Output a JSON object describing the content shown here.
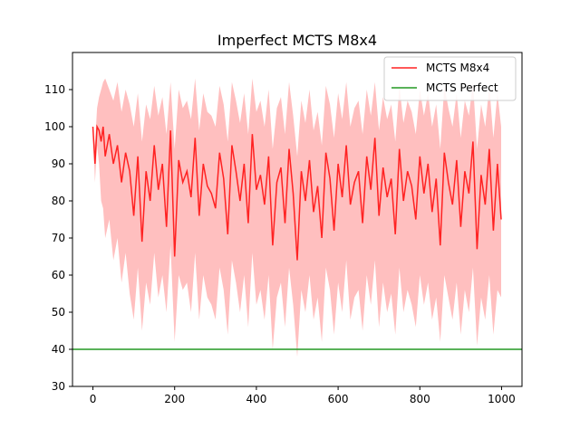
{
  "chart_data": {
    "type": "line",
    "title": "Imperfect MCTS M8x4",
    "xlabel": "",
    "ylabel": "",
    "xlim": [
      -50,
      1050
    ],
    "ylim": [
      30,
      120
    ],
    "xticks": [
      0,
      200,
      400,
      600,
      800,
      1000
    ],
    "yticks": [
      30,
      40,
      50,
      60,
      70,
      80,
      90,
      100,
      110
    ],
    "grid": false,
    "legend_position": "top-right",
    "series": [
      {
        "name": "MCTS M8x4",
        "color": "#ff2222",
        "band_color": "#ffaaaa",
        "x": [
          0,
          5,
          10,
          15,
          20,
          25,
          30,
          40,
          50,
          60,
          70,
          80,
          90,
          100,
          110,
          120,
          130,
          140,
          150,
          160,
          170,
          180,
          190,
          200,
          210,
          220,
          230,
          240,
          250,
          260,
          270,
          280,
          290,
          300,
          310,
          320,
          330,
          340,
          350,
          360,
          370,
          380,
          390,
          400,
          410,
          420,
          430,
          440,
          450,
          460,
          470,
          480,
          490,
          500,
          510,
          520,
          530,
          540,
          550,
          560,
          570,
          580,
          590,
          600,
          610,
          620,
          630,
          640,
          650,
          660,
          670,
          680,
          690,
          700,
          710,
          720,
          730,
          740,
          750,
          760,
          770,
          780,
          790,
          800,
          810,
          820,
          830,
          840,
          850,
          860,
          870,
          880,
          890,
          900,
          910,
          920,
          930,
          940,
          950,
          960,
          970,
          980,
          990,
          999
        ],
        "values": [
          100,
          90,
          100,
          99,
          96,
          100,
          92,
          98,
          90,
          95,
          85,
          93,
          88,
          76,
          92,
          69,
          88,
          80,
          95,
          83,
          90,
          73,
          99,
          65,
          91,
          85,
          88,
          81,
          97,
          76,
          90,
          84,
          82,
          78,
          93,
          86,
          71,
          95,
          88,
          80,
          90,
          74,
          98,
          83,
          87,
          79,
          92,
          68,
          85,
          89,
          74,
          94,
          82,
          64,
          88,
          80,
          91,
          77,
          84,
          70,
          93,
          86,
          72,
          90,
          81,
          95,
          79,
          85,
          88,
          74,
          92,
          83,
          97,
          76,
          89,
          81,
          86,
          71,
          94,
          80,
          88,
          84,
          75,
          92,
          82,
          90,
          77,
          86,
          68,
          93,
          85,
          79,
          91,
          73,
          88,
          82,
          96,
          67,
          87,
          79,
          94,
          72,
          90,
          75
        ],
        "lower": [
          100,
          85,
          95,
          90,
          80,
          78,
          70,
          75,
          64,
          70,
          58,
          66,
          55,
          48,
          62,
          45,
          58,
          52,
          66,
          54,
          60,
          50,
          68,
          42,
          60,
          56,
          58,
          50,
          66,
          48,
          60,
          54,
          52,
          48,
          62,
          56,
          44,
          64,
          58,
          50,
          60,
          46,
          66,
          52,
          56,
          48,
          60,
          40,
          54,
          58,
          46,
          62,
          52,
          38,
          56,
          50,
          60,
          48,
          54,
          42,
          62,
          56,
          44,
          58,
          50,
          64,
          48,
          54,
          56,
          45,
          60,
          52,
          64,
          46,
          58,
          50,
          55,
          44,
          62,
          50,
          56,
          52,
          46,
          60,
          52,
          58,
          48,
          54,
          42,
          60,
          54,
          48,
          58,
          44,
          56,
          50,
          62,
          41,
          54,
          48,
          60,
          44,
          56,
          54
        ],
        "upper": [
          100,
          95,
          105,
          108,
          110,
          112,
          113,
          110,
          107,
          112,
          104,
          110,
          106,
          100,
          109,
          96,
          106,
          102,
          111,
          103,
          108,
          98,
          112,
          94,
          110,
          105,
          107,
          102,
          113,
          99,
          109,
          104,
          103,
          100,
          111,
          106,
          96,
          112,
          107,
          101,
          109,
          98,
          113,
          104,
          107,
          100,
          110,
          94,
          105,
          108,
          98,
          112,
          103,
          92,
          107,
          101,
          110,
          99,
          104,
          95,
          111,
          106,
          97,
          109,
          102,
          112,
          100,
          105,
          107,
          98,
          110,
          103,
          112,
          99,
          108,
          102,
          106,
          96,
          111,
          101,
          107,
          104,
          98,
          110,
          103,
          109,
          100,
          106,
          94,
          111,
          105,
          100,
          109,
          97,
          107,
          103,
          112,
          94,
          106,
          100,
          111,
          97,
          109,
          100
        ]
      },
      {
        "name": "MCTS Perfect",
        "color": "#229922",
        "x": [
          -50,
          1050
        ],
        "values": [
          40,
          40
        ]
      }
    ]
  }
}
